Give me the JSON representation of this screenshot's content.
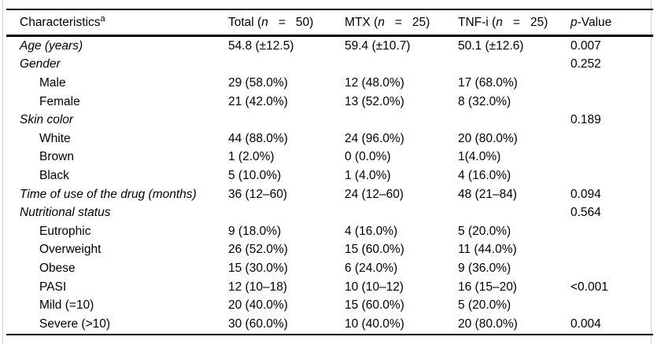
{
  "table": {
    "header": {
      "characteristics": {
        "text": "Characteristics",
        "sup": "a"
      },
      "groups": [
        {
          "pre": "Total (",
          "var": "n",
          "eq": "=",
          "val": "50)"
        },
        {
          "pre": "MTX (",
          "var": "n",
          "eq": "=",
          "val": "25)"
        },
        {
          "pre": "TNF-i (",
          "var": "n",
          "eq": "=",
          "val": "25)"
        }
      ],
      "pvalue": {
        "var": "p",
        "rest": "-Value"
      }
    },
    "rows": [
      {
        "label": "Age (years)",
        "total": "54.8 (±12.5)",
        "mtx": "59.4 (±10.7)",
        "tnfi": "50.1 (±12.6)",
        "p": "0.007"
      },
      {
        "label": "Gender",
        "total": "",
        "mtx": "",
        "tnfi": "",
        "p": "0.252"
      },
      {
        "label": "Male",
        "total": "29 (58.0%)",
        "mtx": "12 (48.0%)",
        "tnfi": "17 (68.0%)",
        "p": ""
      },
      {
        "label": "Female",
        "total": "21 (42.0%)",
        "mtx": "13 (52.0%)",
        "tnfi": "8 (32.0%)",
        "p": ""
      },
      {
        "label": "Skin color",
        "total": "",
        "mtx": "",
        "tnfi": "",
        "p": "0.189"
      },
      {
        "label": "White",
        "total": "44 (88.0%)",
        "mtx": "24 (96.0%)",
        "tnfi": "20 (80.0%)",
        "p": ""
      },
      {
        "label": "Brown",
        "total": "1 (2.0%)",
        "mtx": "0 (0.0%)",
        "tnfi": "1(4.0%)",
        "p": ""
      },
      {
        "label": "Black",
        "total": "5 (10.0%)",
        "mtx": "1 (4.0%)",
        "tnfi": "4 (16.0%)",
        "p": ""
      },
      {
        "label": "Time of use of the drug (months)",
        "total": "36 (12–60)",
        "mtx": "24 (12–60)",
        "tnfi": "48 (21–84)",
        "p": "0.094"
      },
      {
        "label": "Nutritional status",
        "total": "",
        "mtx": "",
        "tnfi": "",
        "p": "0.564"
      },
      {
        "label": "Eutrophic",
        "total": "9 (18.0%)",
        "mtx": "4 (16.0%)",
        "tnfi": "5 (20.0%)",
        "p": ""
      },
      {
        "label": "Overweight",
        "total": "26 (52.0%)",
        "mtx": "15 (60.0%)",
        "tnfi": "11 (44.0%)",
        "p": ""
      },
      {
        "label": "Obese",
        "total": "15 (30.0%)",
        "mtx": "6 (24.0%)",
        "tnfi": "9 (36.0%)",
        "p": ""
      },
      {
        "label": "PASI",
        "total": "12 (10–18)",
        "mtx": "10 (10–12)",
        "tnfi": "16 (15–20)",
        "p": "<0.001"
      },
      {
        "label": "Mild (=10)",
        "total": "20 (40.0%)",
        "mtx": "15 (60.0%)",
        "tnfi": "5 (20.0%)",
        "p": ""
      },
      {
        "label": "Severe (>10)",
        "total": "30 (60.0%)",
        "mtx": "10 (40.0%)",
        "tnfi": "20 (80.0%)",
        "p": "0.004"
      }
    ]
  },
  "colors": {
    "text": "#000000",
    "rule": "#000000",
    "edge_artifact": "#cfcfcf",
    "background": "#ffffff"
  }
}
